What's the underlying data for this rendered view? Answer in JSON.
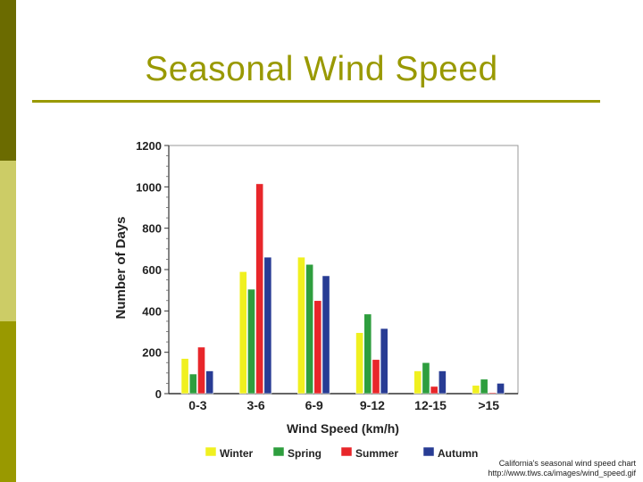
{
  "slide": {
    "title": "Seasonal Wind Speed",
    "accent_color": "#999900",
    "sidebar_colors": [
      "#6b6b00",
      "#cccc66",
      "#999900"
    ],
    "source_line1": "California's seasonal wind speed chart",
    "source_line2": "http://www.tlws.ca/images/wind_speed.gif"
  },
  "chart_data": {
    "type": "bar",
    "title": "",
    "xlabel": "Wind Speed (km/h)",
    "ylabel": "Number of Days",
    "ylim": [
      0,
      1200
    ],
    "yticks": [
      0,
      200,
      400,
      600,
      800,
      1000,
      1200
    ],
    "grid": false,
    "legend_position": "bottom",
    "categories": [
      "0-3",
      "3-6",
      "6-9",
      "9-12",
      "12-15",
      ">15"
    ],
    "series": [
      {
        "name": "Winter",
        "color": "#f0f020",
        "values": [
          170,
          590,
          660,
          295,
          110,
          40
        ]
      },
      {
        "name": "Spring",
        "color": "#2e9e3e",
        "values": [
          95,
          505,
          625,
          385,
          150,
          70
        ]
      },
      {
        "name": "Summer",
        "color": "#e8262a",
        "values": [
          225,
          1015,
          450,
          165,
          35,
          5
        ]
      },
      {
        "name": "Autumn",
        "color": "#283c94",
        "values": [
          110,
          660,
          570,
          315,
          110,
          50
        ]
      }
    ]
  }
}
